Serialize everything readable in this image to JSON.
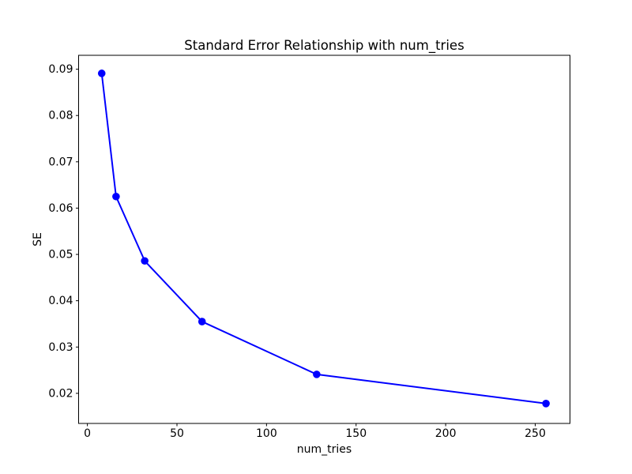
{
  "window": {
    "background": "#ffffff"
  },
  "chart_data": {
    "type": "line",
    "title": "Standard Error Relationship with num_tries",
    "xlabel": "num_tries",
    "ylabel": "SE",
    "x": [
      8,
      16,
      32,
      64,
      128,
      256
    ],
    "series": [
      {
        "name": "SE",
        "values": [
          0.0891,
          0.0625,
          0.0486,
          0.0355,
          0.0241,
          0.0178
        ],
        "color": "#0000ff",
        "marker": "circle",
        "line_width": 2,
        "marker_radius": 4.8
      }
    ],
    "xlim": [
      -4.9,
      269.4
    ],
    "ylim": [
      0.0135,
      0.093
    ],
    "xticks": {
      "values": [
        0,
        50,
        100,
        150,
        200,
        250
      ],
      "labels": [
        "0",
        "50",
        "100",
        "150",
        "200",
        "250"
      ]
    },
    "yticks": {
      "values": [
        0.02,
        0.03,
        0.04,
        0.05,
        0.06,
        0.07,
        0.08,
        0.09
      ],
      "labels": [
        "0.02",
        "0.03",
        "0.04",
        "0.05",
        "0.06",
        "0.07",
        "0.08",
        "0.09"
      ]
    },
    "grid": false,
    "legend": "none",
    "axis_color": "#000000",
    "text_color": "#000000"
  }
}
